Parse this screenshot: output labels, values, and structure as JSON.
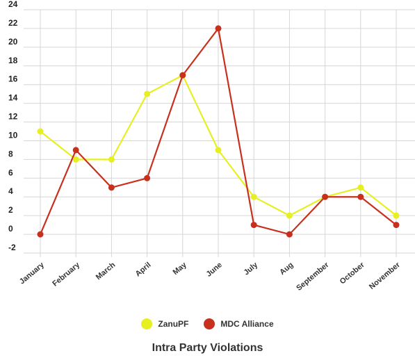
{
  "chart_data": {
    "type": "line",
    "title": "Intra Party Violations",
    "categories": [
      "January",
      "February",
      "March",
      "April",
      "May",
      "June",
      "July",
      "Aug",
      "September",
      "October",
      "November"
    ],
    "ylim": [
      -2,
      24
    ],
    "yticks": [
      -2,
      0,
      2,
      4,
      6,
      8,
      10,
      12,
      14,
      16,
      18,
      20,
      22,
      24
    ],
    "grid": true,
    "legend_position": "bottom",
    "series": [
      {
        "name": "ZanuPF",
        "color": "#e6f020",
        "values": [
          11,
          8,
          8,
          15,
          17,
          9,
          4,
          2,
          4,
          5,
          2
        ]
      },
      {
        "name": "MDC Alliance",
        "color": "#c8301e",
        "values": [
          0,
          9,
          5,
          6,
          17,
          22,
          1,
          0,
          4,
          4,
          1
        ]
      }
    ]
  }
}
